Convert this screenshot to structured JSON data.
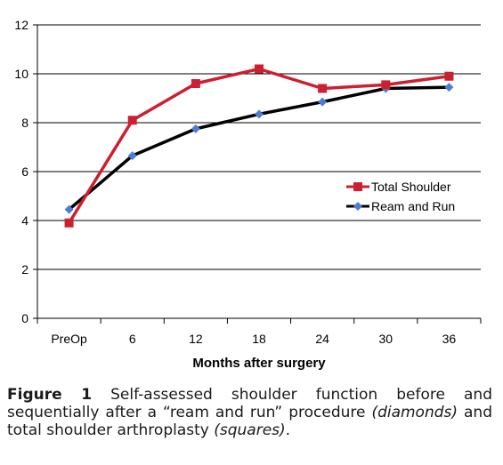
{
  "chart_data": {
    "type": "line",
    "categories": [
      "PreOp",
      "6",
      "12",
      "18",
      "24",
      "30",
      "36"
    ],
    "ylim": [
      0,
      12
    ],
    "yticks": [
      0,
      2,
      4,
      6,
      8,
      10,
      12
    ],
    "xlabel": "Months after surgery",
    "ylabel": "",
    "grid": true,
    "legend_position": "right-middle",
    "series": [
      {
        "name": "Total Shoulder",
        "color": "#cc1f2f",
        "marker": "square",
        "values": [
          3.9,
          8.1,
          9.6,
          10.2,
          9.4,
          9.55,
          9.9
        ]
      },
      {
        "name": "Ream and Run",
        "color": "#000000",
        "marker_color": "#4a7fd4",
        "marker": "diamond",
        "values": [
          4.45,
          6.65,
          7.75,
          8.35,
          8.85,
          9.4,
          9.45
        ]
      }
    ]
  },
  "caption": {
    "lead": "Figure 1",
    "text1": " Self-assessed shoulder function before and sequentially after a “ream and run” procedure ",
    "em1": "(diamonds)",
    "text2": " and total shoulder arthroplasty ",
    "em2": "(squares)",
    "text3": "."
  }
}
